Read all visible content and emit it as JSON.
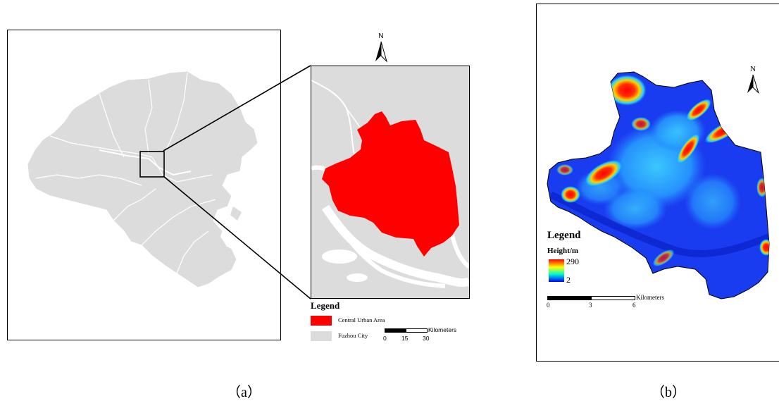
{
  "panel_a": {
    "caption": "（a）",
    "north_label": "N",
    "legend": {
      "title": "Legend",
      "items": [
        {
          "label": "Central Urban Area",
          "color": "#ff0000"
        },
        {
          "label": "Fuzhou City",
          "color": "#dcdcdc"
        }
      ]
    },
    "scale": {
      "unit": "Kilometers",
      "ticks": [
        "0",
        "15",
        "30"
      ]
    }
  },
  "panel_b": {
    "caption": "（b）",
    "north_label": "N",
    "legend": {
      "title": "Legend",
      "subtitle": "Height/m",
      "max_label": "290",
      "min_label": "2",
      "ramp_colors": [
        "#ff0000",
        "#ffff00",
        "#00ffcc",
        "#0000ff"
      ]
    },
    "scale": {
      "unit": "Kilometers",
      "ticks": [
        "0",
        "3",
        "6"
      ]
    }
  },
  "colors": {
    "city_gray": "#dcdcdc",
    "urban_red": "#ff0000",
    "height_low": "#1a3cf0",
    "height_mid": "#28a0ff"
  }
}
